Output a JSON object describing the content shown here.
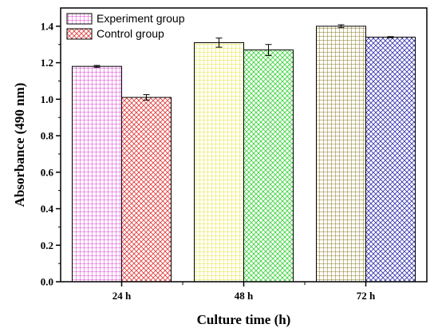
{
  "chart_data": {
    "type": "bar",
    "categories": [
      "24 h",
      "48 h",
      "72 h"
    ],
    "series": [
      {
        "name": "Experiment group",
        "values": [
          1.18,
          1.31,
          1.4
        ],
        "errors": [
          0.005,
          0.025,
          0.008
        ],
        "colors": [
          "#d93bd0",
          "#e3e330",
          "#8a7a22"
        ],
        "pattern": "grid"
      },
      {
        "name": "Control group",
        "values": [
          1.01,
          1.27,
          1.34
        ],
        "errors": [
          0.015,
          0.03,
          0.003
        ],
        "colors": [
          "#e0403f",
          "#3fd43f",
          "#3a3ab0"
        ],
        "pattern": "crosshatch"
      }
    ],
    "xlabel": "Culture time (h)",
    "ylabel": "Absorbance  (490 nm)",
    "ylim": [
      0,
      1.5
    ],
    "yticks": [
      "0.0",
      "0.2",
      "0.4",
      "0.6",
      "0.8",
      "1.0",
      "1.2",
      "1.4"
    ],
    "legend_position": "top-left",
    "grid": false
  }
}
